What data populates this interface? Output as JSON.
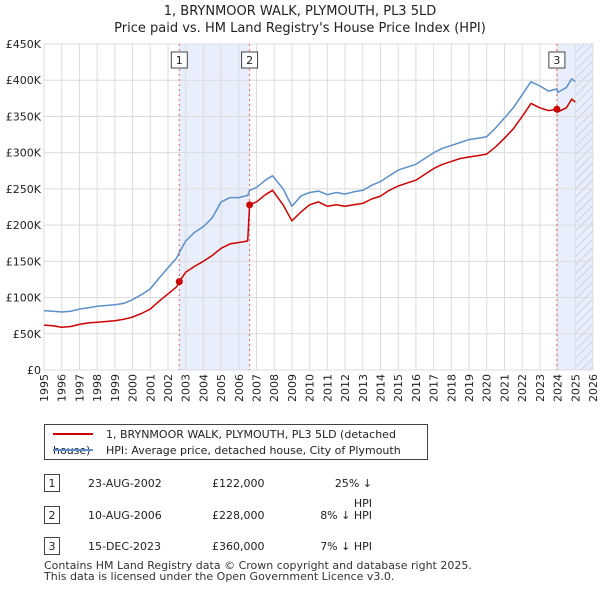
{
  "title": {
    "line1": "1, BRYNMOOR WALK, PLYMOUTH, PL3 5LD",
    "line2": "Price paid vs. HM Land Registry's House Price Index (HPI)"
  },
  "chart_data": {
    "type": "line",
    "title": "1, BRYNMOOR WALK, PLYMOUTH, PL3 5LD — Price paid vs. HM Land Registry's House Price Index (HPI)",
    "xlabel": "",
    "ylabel": "",
    "xlim": [
      1995,
      2026
    ],
    "ylim": [
      0,
      450000
    ],
    "x_ticks": [
      "1995",
      "1996",
      "1997",
      "1998",
      "1999",
      "2000",
      "2001",
      "2002",
      "2003",
      "2004",
      "2005",
      "2006",
      "2007",
      "2008",
      "2009",
      "2010",
      "2011",
      "2012",
      "2013",
      "2014",
      "2015",
      "2016",
      "2017",
      "2018",
      "2019",
      "2020",
      "2021",
      "2022",
      "2023",
      "2024",
      "2025",
      "2026"
    ],
    "y_ticks": [
      {
        "value": 0,
        "label": "£0"
      },
      {
        "value": 50000,
        "label": "£50K"
      },
      {
        "value": 100000,
        "label": "£100K"
      },
      {
        "value": 150000,
        "label": "£150K"
      },
      {
        "value": 200000,
        "label": "£200K"
      },
      {
        "value": 250000,
        "label": "£250K"
      },
      {
        "value": 300000,
        "label": "£300K"
      },
      {
        "value": 350000,
        "label": "£350K"
      },
      {
        "value": 400000,
        "label": "£400K"
      },
      {
        "value": 450000,
        "label": "£450K"
      }
    ],
    "grid": true,
    "shaded_periods": [
      {
        "from": 2002.64,
        "to": 2006.61
      },
      {
        "from": 2023.96,
        "to": 2026
      }
    ],
    "hatched_from": 2025.0,
    "series": [
      {
        "name": "1, BRYNMOOR WALK, PLYMOUTH, PL3 5LD (detached house)",
        "color": "#cc0000",
        "x": [
          1995,
          1995.5,
          1996,
          1996.5,
          1997,
          1997.5,
          1998,
          1998.5,
          1999,
          1999.5,
          2000,
          2000.5,
          2001,
          2001.5,
          2002,
          2002.5,
          2002.64,
          2003,
          2003.5,
          2004,
          2004.5,
          2005,
          2005.5,
          2006,
          2006.5,
          2006.61,
          2007,
          2007.5,
          2007.9,
          2008.5,
          2009,
          2009.5,
          2010,
          2010.5,
          2011,
          2011.5,
          2012,
          2012.5,
          2013,
          2013.5,
          2014,
          2014.5,
          2015,
          2015.5,
          2016,
          2016.5,
          2017,
          2017.5,
          2018,
          2018.5,
          2019,
          2019.5,
          2020,
          2020.5,
          2021,
          2021.5,
          2022,
          2022.5,
          2023,
          2023.5,
          2023.96,
          2024,
          2024.5,
          2024.8,
          2025
        ],
        "y": [
          62000,
          61000,
          59000,
          60000,
          63000,
          65000,
          66000,
          67000,
          68000,
          70000,
          73000,
          78000,
          84000,
          95000,
          105000,
          115000,
          122000,
          135000,
          143000,
          150000,
          158000,
          168000,
          174000,
          176000,
          178000,
          228000,
          232000,
          242000,
          248000,
          228000,
          206000,
          218000,
          228000,
          232000,
          226000,
          228000,
          226000,
          228000,
          230000,
          236000,
          240000,
          248000,
          254000,
          258000,
          262000,
          270000,
          278000,
          284000,
          288000,
          292000,
          294000,
          296000,
          298000,
          308000,
          320000,
          333000,
          350000,
          368000,
          362000,
          358000,
          360000,
          356000,
          362000,
          374000,
          370000
        ],
        "sale_indices": [
          16,
          25,
          60
        ]
      },
      {
        "name": "HPI: Average price, detached house, City of Plymouth",
        "color": "#5b8fc9",
        "x": [
          1995,
          1995.5,
          1996,
          1996.5,
          1997,
          1997.5,
          1998,
          1998.5,
          1999,
          1999.5,
          2000,
          2000.5,
          2001,
          2001.5,
          2002,
          2002.5,
          2002.64,
          2003,
          2003.5,
          2004,
          2004.5,
          2005,
          2005.5,
          2006,
          2006.5,
          2006.61,
          2007,
          2007.5,
          2007.9,
          2008.5,
          2009,
          2009.5,
          2010,
          2010.5,
          2011,
          2011.5,
          2012,
          2012.5,
          2013,
          2013.5,
          2014,
          2014.5,
          2015,
          2015.5,
          2016,
          2016.5,
          2017,
          2017.5,
          2018,
          2018.5,
          2019,
          2019.5,
          2020,
          2020.5,
          2021,
          2021.5,
          2022,
          2022.5,
          2023,
          2023.5,
          2023.96,
          2024,
          2024.5,
          2024.8,
          2025
        ],
        "y": [
          82000,
          81000,
          80000,
          81000,
          84000,
          86000,
          88000,
          89000,
          90000,
          92000,
          97000,
          104000,
          112000,
          127000,
          141000,
          155000,
          162000,
          178000,
          190000,
          198000,
          210000,
          232000,
          238000,
          238000,
          241000,
          248000,
          252000,
          262000,
          268000,
          250000,
          226000,
          240000,
          245000,
          247000,
          242000,
          245000,
          243000,
          246000,
          248000,
          255000,
          260000,
          268000,
          276000,
          280000,
          284000,
          292000,
          300000,
          306000,
          310000,
          314000,
          318000,
          320000,
          322000,
          334000,
          348000,
          362000,
          380000,
          398000,
          392000,
          385000,
          388000,
          383000,
          390000,
          402000,
          398000
        ]
      }
    ],
    "sales": [
      {
        "label": "1",
        "x": 2002.64,
        "price": 122000
      },
      {
        "label": "2",
        "x": 2006.61,
        "price": 228000
      },
      {
        "label": "3",
        "x": 2023.96,
        "price": 360000
      }
    ]
  },
  "legend": {
    "property_label": "1, BRYNMOOR WALK, PLYMOUTH, PL3 5LD (detached house)",
    "hpi_label": "HPI: Average price, detached house, City of Plymouth",
    "property_color": "#cc0000",
    "hpi_color": "#5b8fc9"
  },
  "transactions": [
    {
      "num": "1",
      "date": "23-AUG-2002",
      "price": "£122,000",
      "hpi": "25% ↓ HPI"
    },
    {
      "num": "2",
      "date": "10-AUG-2006",
      "price": "£228,000",
      "hpi": "8% ↓ HPI"
    },
    {
      "num": "3",
      "date": "15-DEC-2023",
      "price": "£360,000",
      "hpi": "7% ↓ HPI"
    }
  ],
  "footer": {
    "line1": "Contains HM Land Registry data © Crown copyright and database right 2025.",
    "line2": "This data is licensed under the Open Government Licence v3.0."
  }
}
